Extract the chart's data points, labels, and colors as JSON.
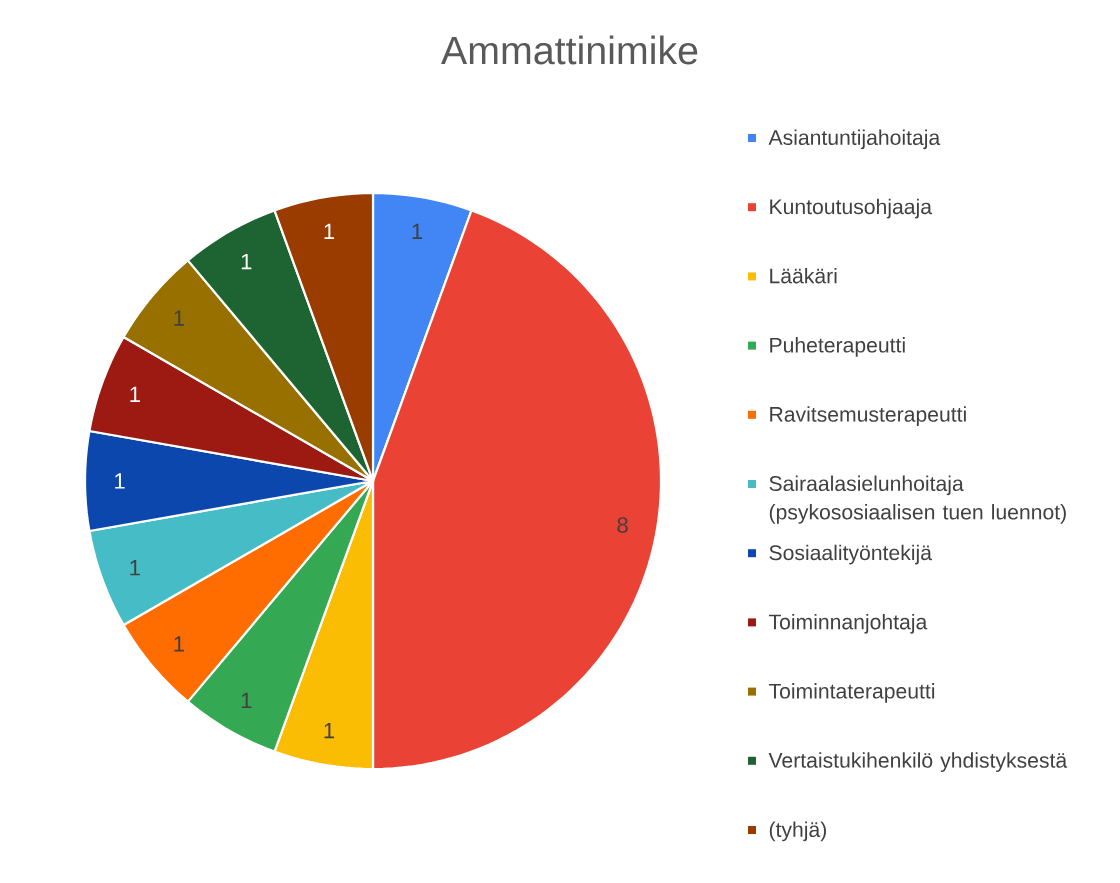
{
  "chart_data": {
    "type": "pie",
    "title": "Ammattinimike",
    "categories": [
      "Asiantuntijahoitaja",
      "Kuntoutusohjaaja",
      "Lääkäri",
      "Puheterapeutti",
      "Ravitsemusterapeutti",
      "Sairaalasielunhoitaja (psykososiaalisen tuen luennot)",
      "Sosiaalityöntekijä",
      "Toiminnanjohtaja",
      "Toimintaterapeutti",
      "Vertaistukihenkilö yhdistyksestä",
      "(tyhjä)"
    ],
    "values": [
      1,
      8,
      1,
      1,
      1,
      1,
      1,
      1,
      1,
      1,
      1
    ],
    "colors": [
      "#4285f4",
      "#ea4335",
      "#fbbc04",
      "#34a853",
      "#ff6d01",
      "#46bdc6",
      "#0b47ad",
      "#9c1a12",
      "#977000",
      "#1e6432",
      "#9a3c00"
    ],
    "data_labels": true,
    "legend": "right"
  }
}
